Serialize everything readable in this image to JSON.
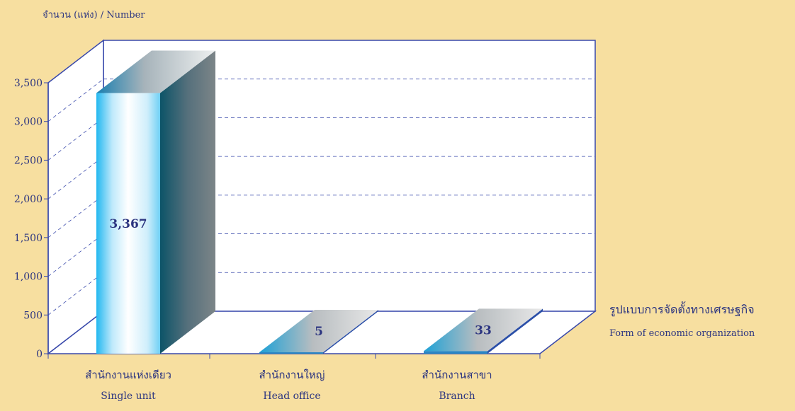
{
  "chart_data": {
    "type": "bar",
    "y_axis_title": "จำนวน (แห่ง) / Number",
    "x_axis_title_th": "รูปแบบการจัดตั้งทางเศรษฐกิจ",
    "x_axis_title_en": "Form of  economic organization",
    "categories": [
      {
        "th": "สำนักงานแห่งเดียว",
        "en": "Single unit"
      },
      {
        "th": "สำนักงานใหญ่",
        "en": "Head office"
      },
      {
        "th": "สำนักงานสาขา",
        "en": "Branch"
      }
    ],
    "values": [
      3367,
      5,
      33
    ],
    "value_labels": [
      "3,367",
      "5",
      "33"
    ],
    "ylim": [
      0,
      3500
    ],
    "y_ticks": [
      0,
      500,
      1000,
      1500,
      2000,
      2500,
      3000,
      3500
    ],
    "y_tick_labels": [
      "0",
      "500",
      "1,000",
      "1,500",
      "2,000",
      "2,500",
      "3,000",
      "3,500"
    ],
    "grid": true,
    "three_d": true
  }
}
